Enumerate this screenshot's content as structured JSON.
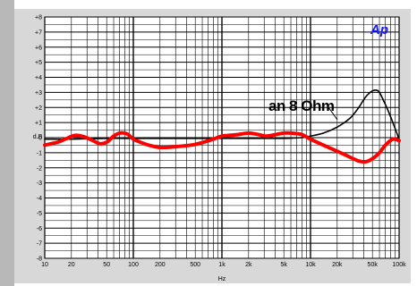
{
  "chart_data": {
    "type": "line",
    "title": "",
    "xlabel": "Hz",
    "ylabel": "d B",
    "x_scale": "log",
    "xlim": [
      10,
      100000
    ],
    "ylim": [
      -8,
      8
    ],
    "grid": true,
    "x_tick_labels": [
      {
        "value": 10,
        "label": "10"
      },
      {
        "value": 20,
        "label": "20"
      },
      {
        "value": 50,
        "label": "50"
      },
      {
        "value": 100,
        "label": "100"
      },
      {
        "value": 200,
        "label": "200"
      },
      {
        "value": 500,
        "label": "500"
      },
      {
        "value": 1000,
        "label": "1k"
      },
      {
        "value": 2000,
        "label": "2k"
      },
      {
        "value": 5000,
        "label": "5k"
      },
      {
        "value": 10000,
        "label": "10k"
      },
      {
        "value": 20000,
        "label": "20k"
      },
      {
        "value": 50000,
        "label": "50k"
      },
      {
        "value": 100000,
        "label": "100k"
      }
    ],
    "y_tick_labels": [
      {
        "value": 8,
        "label": "+8"
      },
      {
        "value": 7,
        "label": "+7"
      },
      {
        "value": 6,
        "label": "+6"
      },
      {
        "value": 5,
        "label": "+5"
      },
      {
        "value": 4,
        "label": "+4"
      },
      {
        "value": 3,
        "label": "+3"
      },
      {
        "value": 2,
        "label": "+2"
      },
      {
        "value": 1,
        "label": "+1"
      },
      {
        "value": 0,
        "label": "-0"
      },
      {
        "value": -1,
        "label": "-1"
      },
      {
        "value": -2,
        "label": "-2"
      },
      {
        "value": -3,
        "label": "-3"
      },
      {
        "value": -4,
        "label": "-4"
      },
      {
        "value": -5,
        "label": "-5"
      },
      {
        "value": -6,
        "label": "-6"
      },
      {
        "value": -7,
        "label": "-7"
      },
      {
        "value": -8,
        "label": "-8"
      }
    ],
    "annotation": "an 8 Ohm",
    "logo": "Ap",
    "series": [
      {
        "color": "#000000",
        "x": [
          10,
          20,
          50,
          100,
          200,
          500,
          1000,
          2000,
          5000,
          8000,
          10000,
          14000,
          20000,
          28000,
          35000,
          42000,
          50000,
          58000,
          65000,
          75000,
          85000,
          100000
        ],
        "y": [
          -0.1,
          -0.1,
          -0.05,
          -0.05,
          -0.05,
          -0.05,
          -0.05,
          -0.05,
          -0.05,
          0.0,
          0.1,
          0.3,
          0.7,
          1.3,
          2.0,
          2.7,
          3.1,
          3.1,
          2.6,
          1.8,
          1.0,
          -0.1
        ]
      },
      {
        "color": "#ff0000",
        "x": [
          10,
          14,
          17,
          22,
          28,
          35,
          42,
          50,
          60,
          70,
          85,
          100,
          120,
          150,
          200,
          300,
          500,
          800,
          1000,
          1500,
          2000,
          2600,
          3200,
          4000,
          5000,
          6000,
          8000,
          10000,
          14000,
          20000,
          28000,
          35000,
          42000,
          50000,
          60000,
          70000,
          85000,
          100000
        ],
        "y": [
          -0.5,
          -0.3,
          -0.1,
          0.15,
          0.05,
          -0.2,
          -0.4,
          -0.3,
          0.1,
          0.3,
          0.25,
          -0.1,
          -0.3,
          -0.5,
          -0.65,
          -0.6,
          -0.45,
          -0.1,
          0.1,
          0.2,
          0.3,
          0.2,
          0.1,
          0.2,
          0.3,
          0.3,
          0.2,
          -0.1,
          -0.5,
          -0.9,
          -1.3,
          -1.55,
          -1.6,
          -1.4,
          -1.0,
          -0.5,
          -0.1,
          -0.2
        ]
      }
    ]
  }
}
